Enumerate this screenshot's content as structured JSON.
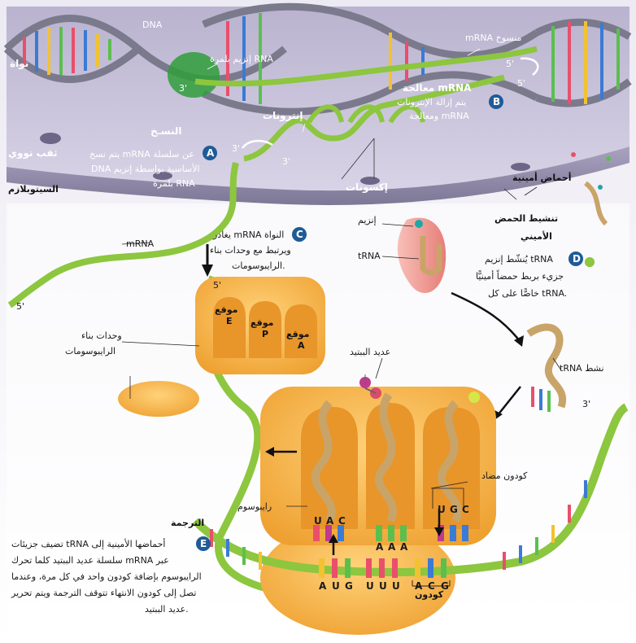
{
  "labels": {
    "dna": "DNA",
    "nucleus": "نواة",
    "rna_polymerase": "إنزيم بلمرة RNA",
    "three_prime_dna": "3'",
    "mrna_transcribed": "mRNA منسوخ",
    "five_prime_a": "5'",
    "five_prime_b": "5'",
    "mrna_processing": "معالجة mRNA",
    "introns": "إنترونات",
    "exons": "إكسونات",
    "three_prime_c": "3'",
    "three_prime_d": "3'",
    "nuclear_pore": "ثقب نووي",
    "cytoplasm": "السيتوبلازم",
    "transcription_title": "النسـخ",
    "amino_acids": "أحماض أمينية",
    "amino_activation_1": "تنشيط الحمض",
    "amino_activation_2": "الأميني",
    "enzyme": "إنزيم",
    "trna": "tRNA",
    "mrna_strand": "mRNA",
    "five_prime_e": "5'",
    "five_prime_f": "5'",
    "ribosome_subunits_1": "وحدات بناء",
    "ribosome_subunits_2": "الرايبوسومات",
    "site_e_1": "موقع",
    "site_e_2": "E",
    "site_p_1": "موقع",
    "site_p_2": "P",
    "site_a_1": "موقع",
    "site_a_2": "A",
    "activated_trna": "tRNA نشط",
    "polypeptide": "عديد الببتيد",
    "three_prime_g": "3'",
    "anticodon": "كودون مضاد",
    "ribosome": "رايبوسوم",
    "translation_title": "الترجمة",
    "codon": "كودون"
  },
  "steps": {
    "A": {
      "badge": "A",
      "lines": [
        "يتم نسخ mRNA عن سلسلة",
        "DNA الأساسية بواسطة إنزيم",
        "بلمرة RNA"
      ]
    },
    "B": {
      "badge": "B",
      "lines": [
        "يتم إزالة الإنترونات",
        "ومعالجة mRNA"
      ]
    },
    "C": {
      "badge": "C",
      "lines": [
        "يغادر mRNA النواة",
        "ويرتبط مع وحدات بناء",
        "الرايبوسومات."
      ]
    },
    "D": {
      "badge": "D",
      "lines": [
        "يُنشّط إنزيم tRNA",
        "جزيء بربط حمضاً أمينيًّا",
        "خاصًّا على كل tRNA."
      ]
    },
    "E": {
      "badge": "E",
      "lines": [
        "تضيف جزيئات tRNA أحماضها الأمينية إلى",
        "سلسلة عديد الببتيد كلما تحرك mRNA عبر",
        "الرايبوسوم بإضافة كودون واحد في كل مرة، وعندما",
        "تصل إلى كودون الانتهاء تتوقف الترجمة ويتم تحرير",
        "عديد الببتيد."
      ]
    }
  },
  "anticodons": {
    "left": [
      "U",
      "A",
      "C"
    ],
    "middle": [
      "A",
      "A",
      "A"
    ],
    "right": [
      "U",
      "G",
      "C"
    ]
  },
  "mrna_bases": [
    "A",
    "U",
    "G",
    "U",
    "U",
    "U",
    "A",
    "C",
    "G"
  ],
  "colors": {
    "membrane": "#8e8aa6",
    "nucleus_fill": "#c9c4dc",
    "mrna_green": "#8dc63f",
    "ribosome_orange": "#f4b43c",
    "trna_tan": "#c9a468",
    "badge_blue": "#1f5b96"
  }
}
